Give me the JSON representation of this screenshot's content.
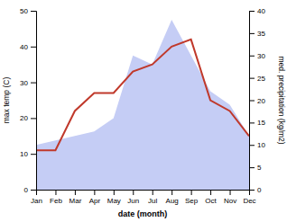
{
  "chart_data": {
    "type": "line",
    "x_label": "date (month)",
    "y_label": "max temp (C)",
    "y2_label": "med. precipitation (kg/m2)",
    "categories": [
      "Jan",
      "Feb",
      "Mar",
      "Apr",
      "May",
      "Jun",
      "Jul",
      "Aug",
      "Sep",
      "Oct",
      "Nov",
      "Dec"
    ],
    "series": [
      {
        "type": "area",
        "axis": "y2",
        "color": "#c5cdf5",
        "values": [
          10,
          11,
          12,
          13,
          16,
          30,
          28,
          38,
          30,
          22,
          19,
          12
        ]
      },
      {
        "type": "line",
        "color": "#c0392b",
        "values": [
          11,
          11,
          22,
          27,
          27,
          33,
          35,
          40,
          42,
          25,
          22,
          15
        ]
      }
    ],
    "ylim": [
      0,
      50
    ],
    "yticks": [
      0,
      10,
      20,
      30,
      40,
      50
    ],
    "y2lim": [
      0,
      40
    ],
    "y2ticks": [
      0,
      5,
      10,
      15,
      20,
      25,
      30,
      35,
      40
    ],
    "grid": false
  }
}
